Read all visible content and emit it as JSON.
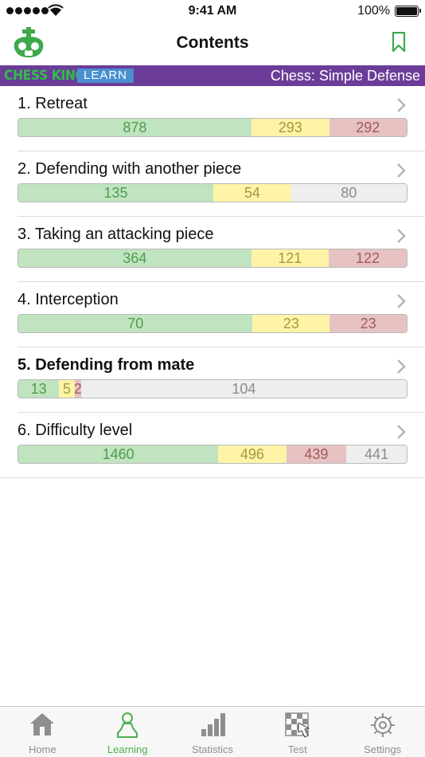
{
  "status_bar": {
    "time": "9:41 AM",
    "battery": "100%"
  },
  "nav": {
    "title": "Contents"
  },
  "banner": {
    "brand_chess": "CHESS KING",
    "brand_learn": "LEARN",
    "course_title": "Chess: Simple Defense"
  },
  "colors": {
    "green": "#c0e4c0",
    "yellow": "#fdf4a8",
    "red": "#e7c2c2",
    "gray": "#eeeeee",
    "banner": "#6b3d99",
    "accent": "#4caf50"
  },
  "items": [
    {
      "title": "1. Retreat",
      "bold": false,
      "green": 878,
      "yellow": 293,
      "red": 292,
      "gray": 0
    },
    {
      "title": "2. Defending with another piece",
      "bold": false,
      "green": 135,
      "yellow": 54,
      "red": 0,
      "gray": 80
    },
    {
      "title": "3. Taking an attacking piece",
      "bold": false,
      "green": 364,
      "yellow": 121,
      "red": 122,
      "gray": 0
    },
    {
      "title": "4. Interception",
      "bold": false,
      "green": 70,
      "yellow": 23,
      "red": 23,
      "gray": 0
    },
    {
      "title": "5. Defending from mate",
      "bold": true,
      "green": 13,
      "yellow": 5,
      "red": 2,
      "gray": 104
    },
    {
      "title": "6. Difficulty level",
      "bold": false,
      "green": 1460,
      "yellow": 496,
      "red": 439,
      "gray": 441
    }
  ],
  "tabs": [
    {
      "label": "Home",
      "icon": "home-icon",
      "active": false
    },
    {
      "label": "Learning",
      "icon": "pawn-icon",
      "active": true
    },
    {
      "label": "Statistics",
      "icon": "bar-chart-icon",
      "active": false
    },
    {
      "label": "Test",
      "icon": "board-hand-icon",
      "active": false
    },
    {
      "label": "Settings",
      "icon": "gear-icon",
      "active": false
    }
  ]
}
